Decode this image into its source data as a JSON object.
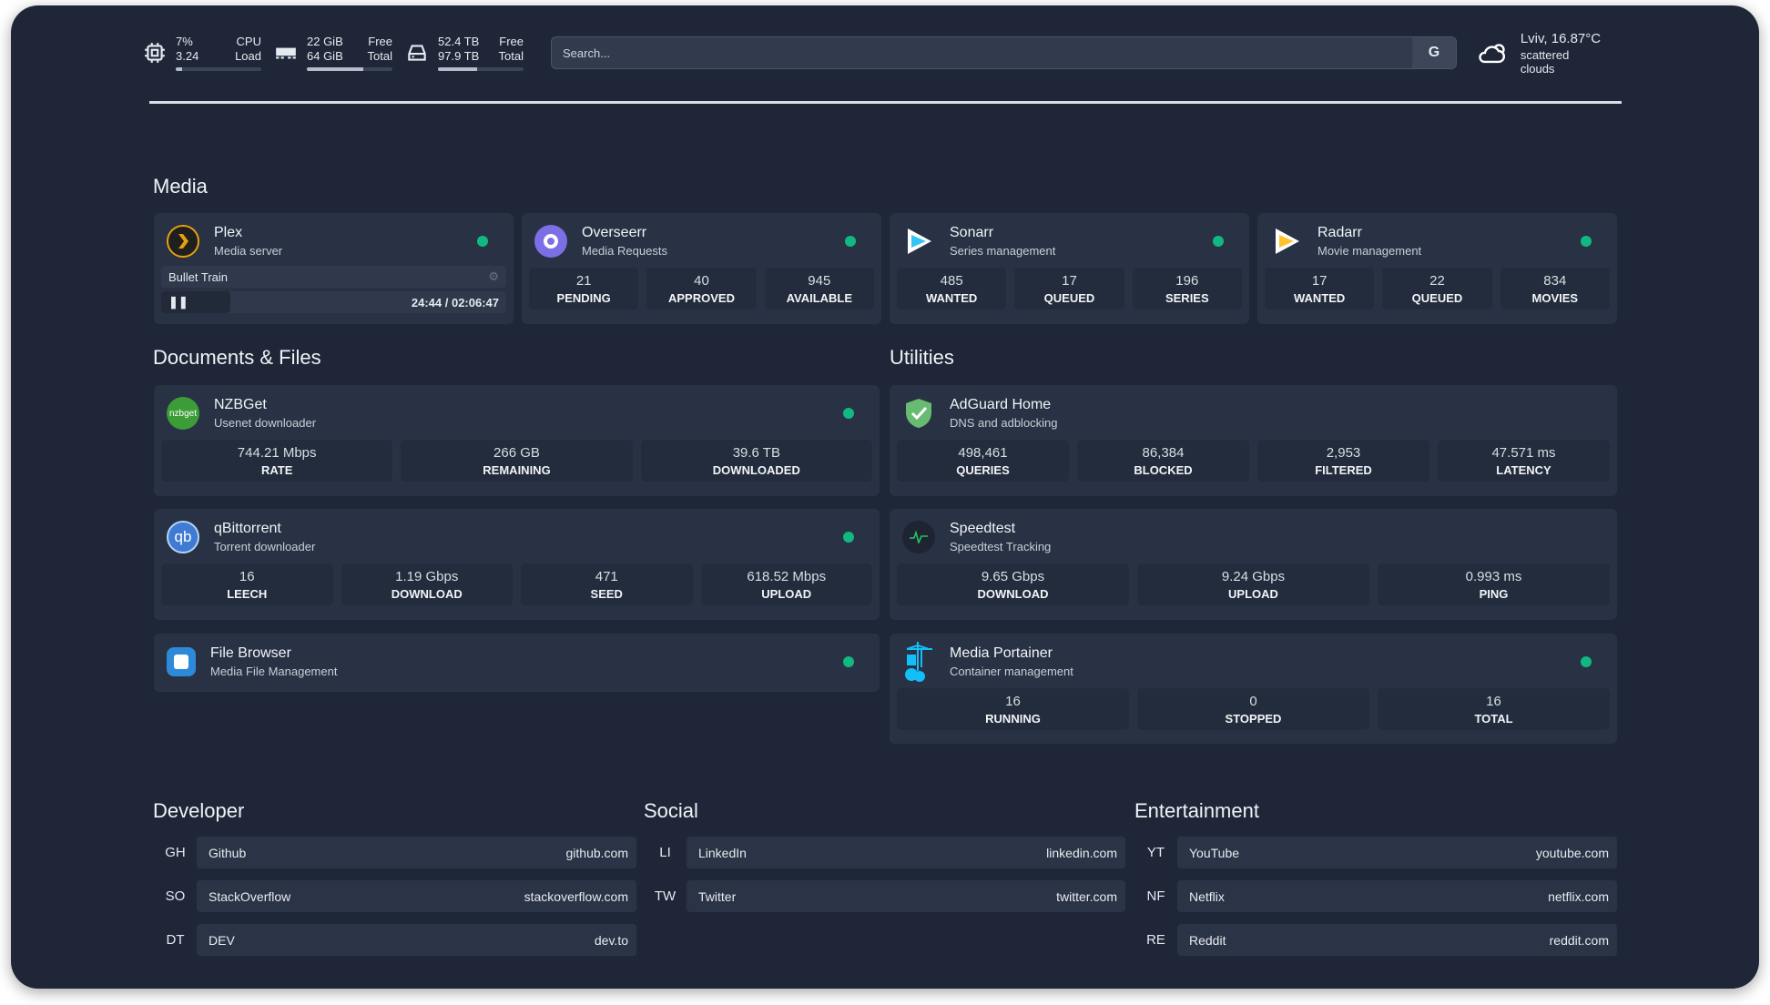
{
  "resources": {
    "cpu": {
      "value1": "7%",
      "label1": "CPU",
      "value2": "3.24",
      "label2": "Load",
      "usage_percent": 7,
      "icon": "cpu-icon"
    },
    "memory": {
      "value1": "22 GiB",
      "label1": "Free",
      "value2": "64 GiB",
      "label2": "Total",
      "usage_percent": 66,
      "icon": "memory-icon"
    },
    "disk": {
      "value1": "52.4 TB",
      "label1": "Free",
      "value2": "97.9 TB",
      "label2": "Total",
      "usage_percent": 46,
      "icon": "disk-icon"
    }
  },
  "search": {
    "placeholder": "Search...",
    "provider_button": "G"
  },
  "weather": {
    "location_temp": "Lviv, 16.87°C",
    "condition": "scattered clouds",
    "icon": "cloud-icon"
  },
  "sections": {
    "media": "Media",
    "documents": "Documents & Files",
    "utilities": "Utilities",
    "developer": "Developer",
    "social": "Social",
    "entertainment": "Entertainment"
  },
  "status_color": "#10b981",
  "plex": {
    "name": "Plex",
    "sub": "Media server",
    "now_playing": "Bullet Train",
    "time": "24:44 / 02:06:47",
    "progress_percent": 20
  },
  "overseerr": {
    "name": "Overseerr",
    "sub": "Media Requests",
    "stats": [
      {
        "v": "21",
        "l": "PENDING"
      },
      {
        "v": "40",
        "l": "APPROVED"
      },
      {
        "v": "945",
        "l": "AVAILABLE"
      }
    ]
  },
  "sonarr": {
    "name": "Sonarr",
    "sub": "Series management",
    "stats": [
      {
        "v": "485",
        "l": "WANTED"
      },
      {
        "v": "17",
        "l": "QUEUED"
      },
      {
        "v": "196",
        "l": "SERIES"
      }
    ]
  },
  "radarr": {
    "name": "Radarr",
    "sub": "Movie management",
    "stats": [
      {
        "v": "17",
        "l": "WANTED"
      },
      {
        "v": "22",
        "l": "QUEUED"
      },
      {
        "v": "834",
        "l": "MOVIES"
      }
    ]
  },
  "nzbget": {
    "name": "NZBGet",
    "sub": "Usenet downloader",
    "logo_text": "nzbget",
    "stats": [
      {
        "v": "744.21 Mbps",
        "l": "RATE"
      },
      {
        "v": "266 GB",
        "l": "REMAINING"
      },
      {
        "v": "39.6 TB",
        "l": "DOWNLOADED"
      }
    ]
  },
  "qbittorrent": {
    "name": "qBittorrent",
    "sub": "Torrent downloader",
    "logo_text": "qb",
    "stats": [
      {
        "v": "16",
        "l": "LEECH"
      },
      {
        "v": "1.19 Gbps",
        "l": "DOWNLOAD"
      },
      {
        "v": "471",
        "l": "SEED"
      },
      {
        "v": "618.52 Mbps",
        "l": "UPLOAD"
      }
    ]
  },
  "filebrowser": {
    "name": "File Browser",
    "sub": "Media File Management"
  },
  "adguard": {
    "name": "AdGuard Home",
    "sub": "DNS and adblocking",
    "stats": [
      {
        "v": "498,461",
        "l": "QUERIES"
      },
      {
        "v": "86,384",
        "l": "BLOCKED"
      },
      {
        "v": "2,953",
        "l": "FILTERED"
      },
      {
        "v": "47.571 ms",
        "l": "LATENCY"
      }
    ]
  },
  "speedtest": {
    "name": "Speedtest",
    "sub": "Speedtest Tracking",
    "stats": [
      {
        "v": "9.65 Gbps",
        "l": "DOWNLOAD"
      },
      {
        "v": "9.24 Gbps",
        "l": "UPLOAD"
      },
      {
        "v": "0.993 ms",
        "l": "PING"
      }
    ]
  },
  "portainer": {
    "name": "Media Portainer",
    "sub": "Container management",
    "stats": [
      {
        "v": "16",
        "l": "RUNNING"
      },
      {
        "v": "0",
        "l": "STOPPED"
      },
      {
        "v": "16",
        "l": "TOTAL"
      }
    ]
  },
  "bookmarks": {
    "developer": [
      {
        "ab": "GH",
        "name": "Github",
        "url": "github.com"
      },
      {
        "ab": "SO",
        "name": "StackOverflow",
        "url": "stackoverflow.com"
      },
      {
        "ab": "DT",
        "name": "DEV",
        "url": "dev.to"
      }
    ],
    "social": [
      {
        "ab": "LI",
        "name": "LinkedIn",
        "url": "linkedin.com"
      },
      {
        "ab": "TW",
        "name": "Twitter",
        "url": "twitter.com"
      }
    ],
    "entertainment": [
      {
        "ab": "YT",
        "name": "YouTube",
        "url": "youtube.com"
      },
      {
        "ab": "NF",
        "name": "Netflix",
        "url": "netflix.com"
      },
      {
        "ab": "RE",
        "name": "Reddit",
        "url": "reddit.com"
      }
    ]
  }
}
